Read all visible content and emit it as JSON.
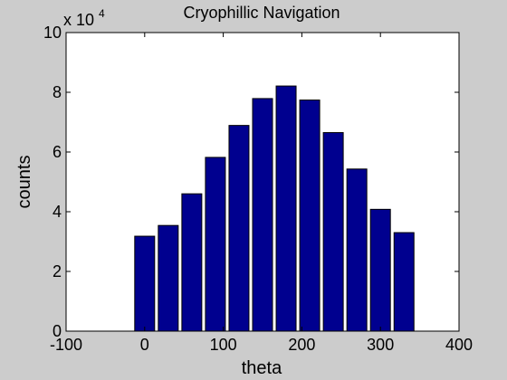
{
  "chart_data": {
    "type": "bar",
    "title": "Cryophillic Navigation",
    "xlabel": "theta",
    "ylabel": "counts",
    "y_multiplier_base": "x 10",
    "y_multiplier_exp": "4",
    "x": [
      0,
      30,
      60,
      90,
      120,
      150,
      180,
      210,
      240,
      270,
      300,
      330
    ],
    "values": [
      31800,
      35400,
      46000,
      58200,
      68900,
      77900,
      82100,
      77400,
      66500,
      54300,
      40800,
      33000
    ],
    "xlim": [
      -100,
      400
    ],
    "ylim": [
      0,
      100000
    ],
    "xticks": [
      "-100",
      "0",
      "100",
      "200",
      "300",
      "400"
    ],
    "yticks": [
      "0",
      "2",
      "4",
      "6",
      "8",
      "10"
    ],
    "bar_color": "#00008f",
    "background": "#cccccc",
    "plot_background": "#ffffff",
    "grid": false
  }
}
